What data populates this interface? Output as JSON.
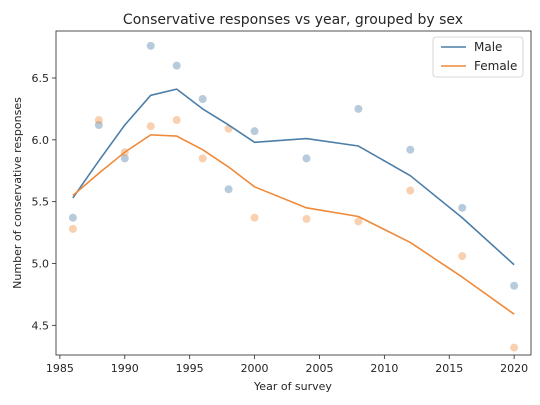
{
  "chart_data": {
    "type": "line",
    "title": "Conservative responses vs year, grouped by sex",
    "xlabel": "Year of survey",
    "ylabel": "Number of conservative responses",
    "xlim": [
      1984.7,
      2021.3
    ],
    "ylim": [
      4.26,
      6.88
    ],
    "xticks": [
      1985,
      1990,
      1995,
      2000,
      2005,
      2010,
      2015,
      2020
    ],
    "xtick_labels": [
      "1985",
      "1990",
      "1995",
      "2000",
      "2005",
      "2010",
      "2015",
      "2020"
    ],
    "yticks": [
      4.5,
      5.0,
      5.5,
      6.0,
      6.5
    ],
    "ytick_labels": [
      "4.5",
      "5.0",
      "5.5",
      "6.0",
      "6.5"
    ],
    "grid": false,
    "legend_position": "top-right",
    "series": [
      {
        "name": "Male",
        "color": "#4c7ea8",
        "line_x": [
          1986,
          1988,
          1990,
          1992,
          1994,
          1996,
          1998,
          2000,
          2004,
          2008,
          2012,
          2016,
          2020
        ],
        "line_y": [
          5.53,
          5.83,
          6.12,
          6.36,
          6.41,
          6.25,
          6.12,
          5.98,
          6.01,
          5.95,
          5.71,
          5.37,
          4.99
        ],
        "points_x": [
          1986,
          1988,
          1990,
          1992,
          1994,
          1996,
          1998,
          2000,
          2004,
          2008,
          2012,
          2016,
          2020
        ],
        "points_y": [
          5.37,
          6.12,
          5.85,
          6.76,
          6.6,
          6.33,
          5.6,
          6.07,
          5.85,
          6.25,
          5.92,
          5.45,
          4.82
        ]
      },
      {
        "name": "Female",
        "color": "#ef8a3a",
        "line_x": [
          1986,
          1988,
          1990,
          1992,
          1994,
          1996,
          1998,
          2000,
          2004,
          2008,
          2012,
          2016,
          2020
        ],
        "line_y": [
          5.55,
          5.73,
          5.9,
          6.04,
          6.03,
          5.92,
          5.78,
          5.62,
          5.45,
          5.38,
          5.17,
          4.89,
          4.59
        ],
        "points_x": [
          1986,
          1988,
          1990,
          1992,
          1994,
          1996,
          1998,
          2000,
          2004,
          2008,
          2012,
          2016,
          2020
        ],
        "points_y": [
          5.28,
          6.16,
          5.9,
          6.11,
          6.16,
          5.85,
          6.09,
          5.37,
          5.36,
          5.34,
          5.59,
          5.06,
          4.32
        ]
      }
    ]
  }
}
